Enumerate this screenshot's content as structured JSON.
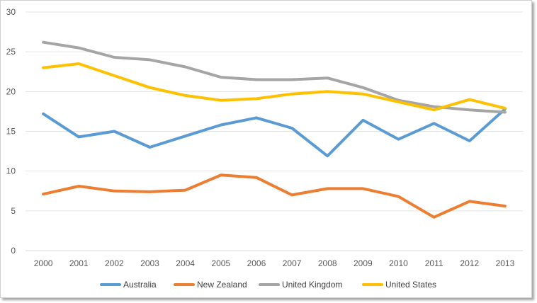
{
  "chart_data": {
    "type": "line",
    "title": "",
    "xlabel": "",
    "ylabel": "",
    "ylim": [
      0,
      30
    ],
    "yticks": [
      "0",
      "5",
      "10",
      "15",
      "20",
      "25",
      "30"
    ],
    "categories": [
      "2000",
      "2001",
      "2002",
      "2003",
      "2004",
      "2005",
      "2006",
      "2007",
      "2008",
      "2009",
      "2010",
      "2011",
      "2012",
      "2013"
    ],
    "grid": "horizontal",
    "legend_position": "bottom",
    "series": [
      {
        "name": "Australia",
        "color": "#5B9BD5",
        "values": [
          17.2,
          14.3,
          15.0,
          13.0,
          14.4,
          15.8,
          16.7,
          15.4,
          11.9,
          16.4,
          14.0,
          16.0,
          13.8,
          17.8
        ]
      },
      {
        "name": "New Zealand",
        "color": "#ED7D31",
        "values": [
          7.1,
          8.1,
          7.5,
          7.4,
          7.6,
          9.5,
          9.2,
          7.0,
          7.8,
          7.8,
          6.8,
          4.2,
          6.2,
          5.6
        ]
      },
      {
        "name": "United Kingdom",
        "color": "#A5A5A5",
        "values": [
          26.2,
          25.5,
          24.3,
          24.0,
          23.1,
          21.8,
          21.5,
          21.5,
          21.7,
          20.5,
          18.9,
          18.1,
          17.7,
          17.4
        ]
      },
      {
        "name": "United States",
        "color": "#FFC000",
        "values": [
          23.0,
          23.5,
          22.0,
          20.5,
          19.5,
          18.9,
          19.1,
          19.7,
          20.0,
          19.7,
          18.7,
          17.7,
          19.0,
          17.9
        ]
      }
    ]
  }
}
